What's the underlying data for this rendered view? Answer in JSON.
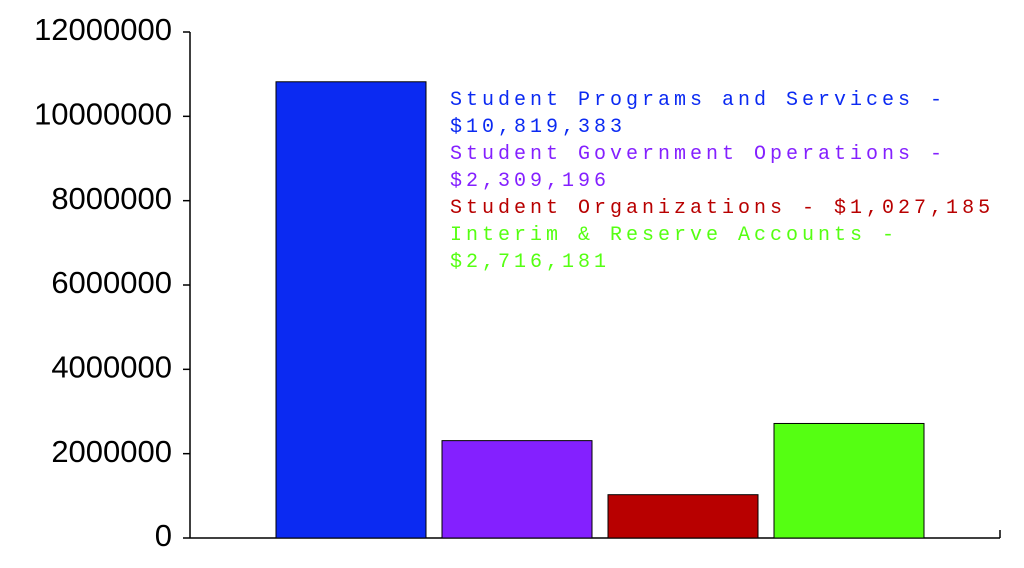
{
  "chart_data": {
    "type": "bar",
    "categories": [
      null
    ],
    "series": [
      {
        "name": "Student Programs and Services - $10,819,383",
        "color": "#0b2af2",
        "values": [
          10819383
        ]
      },
      {
        "name": "Student Government Operations - $2,309,196",
        "color": "#8420ff",
        "values": [
          2309196
        ]
      },
      {
        "name": "Student Organizations - $1,027,185",
        "color": "#b80000",
        "values": [
          1027185
        ]
      },
      {
        "name": "Interim & Reserve Accounts - $2,716,181",
        "color": "#55ff12",
        "values": [
          2716181
        ]
      }
    ],
    "ylim": [
      0,
      12000000
    ],
    "yticks": [
      0,
      2000000,
      4000000,
      6000000,
      8000000,
      10000000,
      12000000
    ],
    "grid": false
  }
}
